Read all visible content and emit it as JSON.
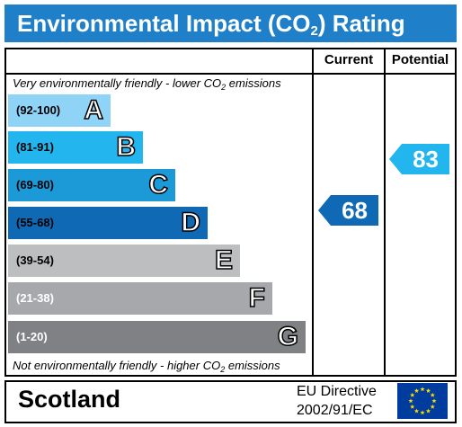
{
  "title": {
    "main": "Environmental Impact (CO",
    "sub": "2",
    "tail": ") Rating"
  },
  "columns": {
    "current": "Current",
    "potential": "Potential"
  },
  "top_note": {
    "pre": "Very environmentally friendly - lower CO",
    "sub": "2",
    "post": " emissions"
  },
  "bottom_note": {
    "pre": "Not environmentally friendly - higher CO",
    "sub": "2",
    "post": " emissions"
  },
  "bands": [
    {
      "range": "(92-100)",
      "letter": "A",
      "color": "#8fd3f6",
      "range_color": "#000000"
    },
    {
      "range": "(81-91)",
      "letter": "B",
      "color": "#22b5ee",
      "range_color": "#000000"
    },
    {
      "range": "(69-80)",
      "letter": "C",
      "color": "#1c9ad8",
      "range_color": "#000000"
    },
    {
      "range": "(55-68)",
      "letter": "D",
      "color": "#1069b5",
      "range_color": "#000000"
    },
    {
      "range": "(39-54)",
      "letter": "E",
      "color": "#bcbec0",
      "range_color": "#000000"
    },
    {
      "range": "(21-38)",
      "letter": "F",
      "color": "#a6a8ab",
      "range_color": "#ffffff"
    },
    {
      "range": "(1-20)",
      "letter": "G",
      "color": "#7f8184",
      "range_color": "#ffffff"
    }
  ],
  "current": {
    "value": "68",
    "color": "#1069b5"
  },
  "potential": {
    "value": "83",
    "color": "#22b5ee"
  },
  "footer": {
    "country": "Scotland",
    "directive_line1": "EU Directive",
    "directive_line2": "2002/91/EC"
  },
  "eu_flag": {
    "icon": "eu-flag-icon",
    "background": "#003c9e",
    "stars": "#ffde00"
  }
}
